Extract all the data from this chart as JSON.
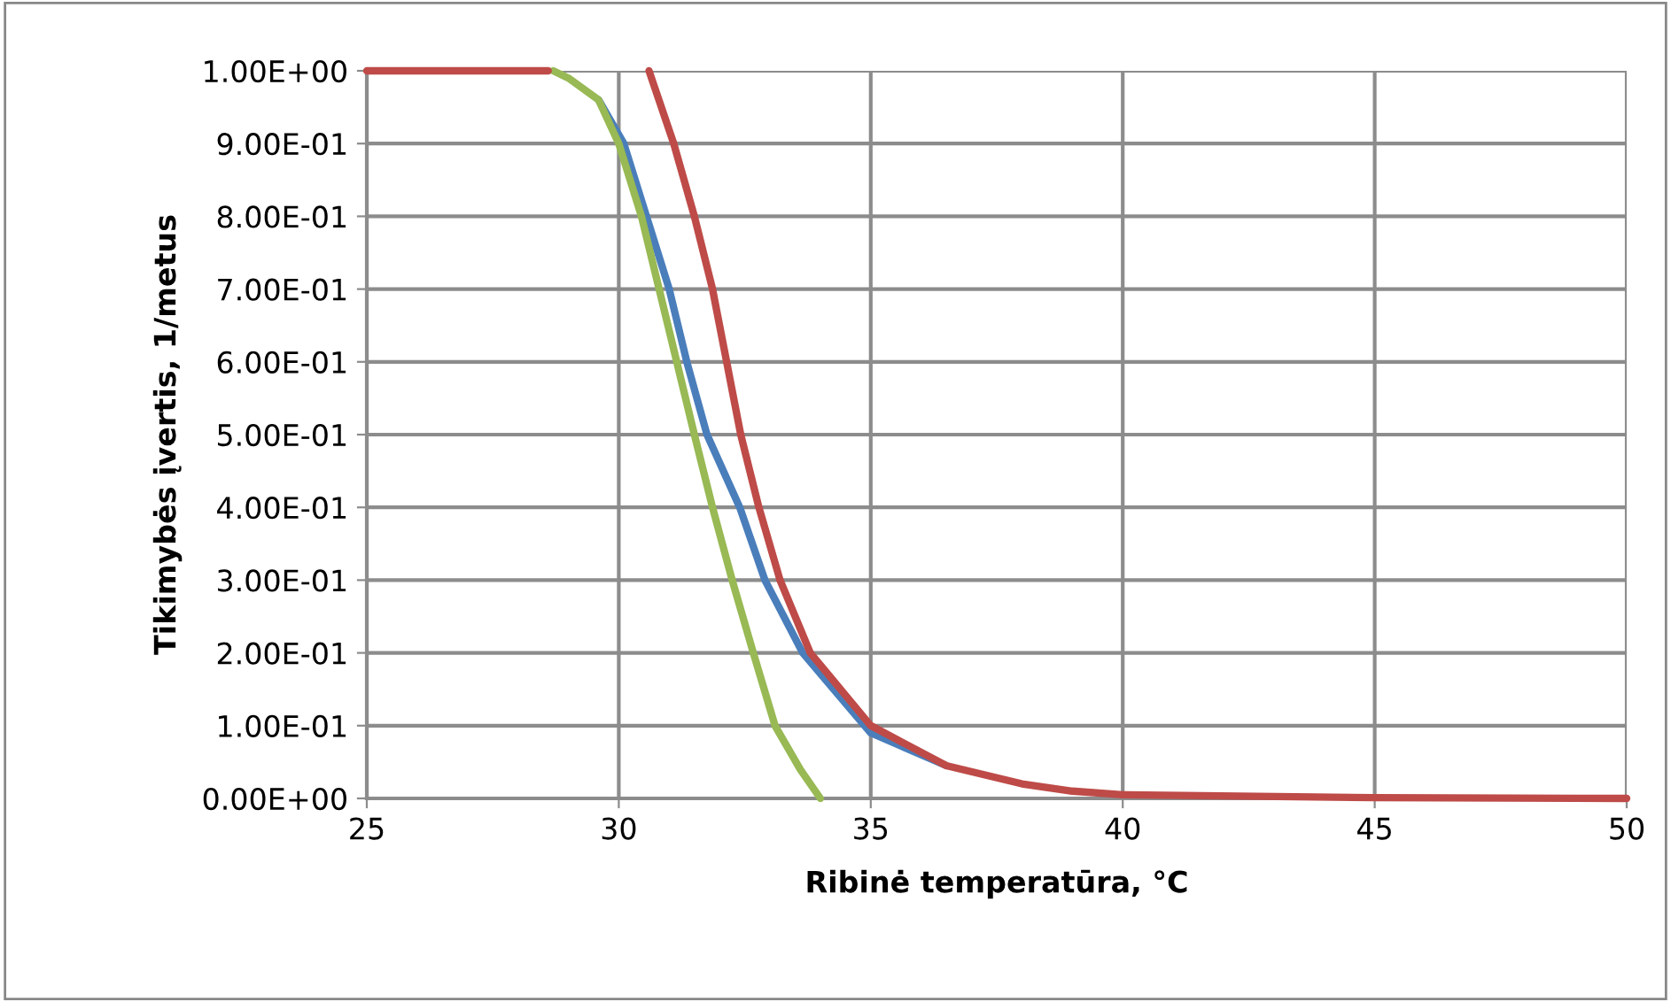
{
  "chart_data": {
    "type": "line",
    "xlabel": "Ribinė temperatūra, °C",
    "ylabel": "Tikimybės įvertis, 1/metus",
    "xlim": [
      25,
      50
    ],
    "xticks": [
      25,
      30,
      35,
      40,
      45,
      50
    ],
    "ylim": [
      0,
      1
    ],
    "yticks": [
      {
        "value": 0,
        "label": "0.00E+00"
      },
      {
        "value": 0.1,
        "label": "1.00E-01"
      },
      {
        "value": 0.2,
        "label": "2.00E-01"
      },
      {
        "value": 0.3,
        "label": "3.00E-01"
      },
      {
        "value": 0.4,
        "label": "4.00E-01"
      },
      {
        "value": 0.5,
        "label": "5.00E-01"
      },
      {
        "value": 0.6,
        "label": "6.00E-01"
      },
      {
        "value": 0.7,
        "label": "7.00E-01"
      },
      {
        "value": 0.8,
        "label": "8.00E-01"
      },
      {
        "value": 0.9,
        "label": "9.00E-01"
      },
      {
        "value": 1.0,
        "label": "1.00E+00"
      }
    ],
    "grid": true,
    "marker": "none",
    "line_style": "solid",
    "series": [
      {
        "color": "#4a7ebb",
        "x": [
          29.6,
          30.1,
          30.55,
          31.0,
          31.35,
          31.75,
          32.4,
          32.9,
          33.65,
          35.0,
          36.5
        ],
        "values": [
          0.96,
          0.9,
          0.8,
          0.7,
          0.6,
          0.5,
          0.4,
          0.3,
          0.2,
          0.09,
          0.045
        ]
      },
      {
        "color": "#98b954",
        "x": [
          28.7,
          29.0,
          29.6,
          30.0,
          30.45,
          30.8,
          31.15,
          31.5,
          31.86,
          32.25,
          32.67,
          33.1,
          33.6,
          34.0
        ],
        "values": [
          1.0,
          0.99,
          0.96,
          0.9,
          0.8,
          0.7,
          0.6,
          0.5,
          0.4,
          0.3,
          0.2,
          0.1,
          0.04,
          0
        ]
      },
      {
        "color": "#be4b48",
        "x": [
          25,
          28.6,
          28.8,
          30.6,
          31.09,
          31.5,
          31.86,
          32.14,
          32.42,
          32.78,
          33.2,
          33.8,
          35.0,
          36.5,
          38,
          39,
          40,
          45,
          50
        ],
        "values": [
          1.0,
          1.0,
          null,
          1.0,
          0.9,
          0.8,
          0.7,
          0.6,
          0.5,
          0.4,
          0.3,
          0.2,
          0.1,
          0.045,
          0.02,
          0.01,
          0.005,
          0.001,
          0
        ]
      }
    ]
  }
}
